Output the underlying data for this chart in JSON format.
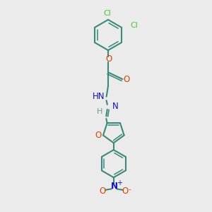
{
  "bg_color": "#ebebeb",
  "bond_color": "#3a8a7a",
  "bond_width": 1.5,
  "cl_color": "#44cc22",
  "o_color": "#dd4400",
  "n_color": "#1111cc",
  "h_color": "#6a9a8a",
  "no2_n_color": "#1111cc",
  "no2_o_color": "#dd4400",
  "fig_w": 3.0,
  "fig_h": 3.0,
  "dpi": 100,
  "xlim": [
    0,
    10
  ],
  "ylim": [
    0,
    10
  ]
}
